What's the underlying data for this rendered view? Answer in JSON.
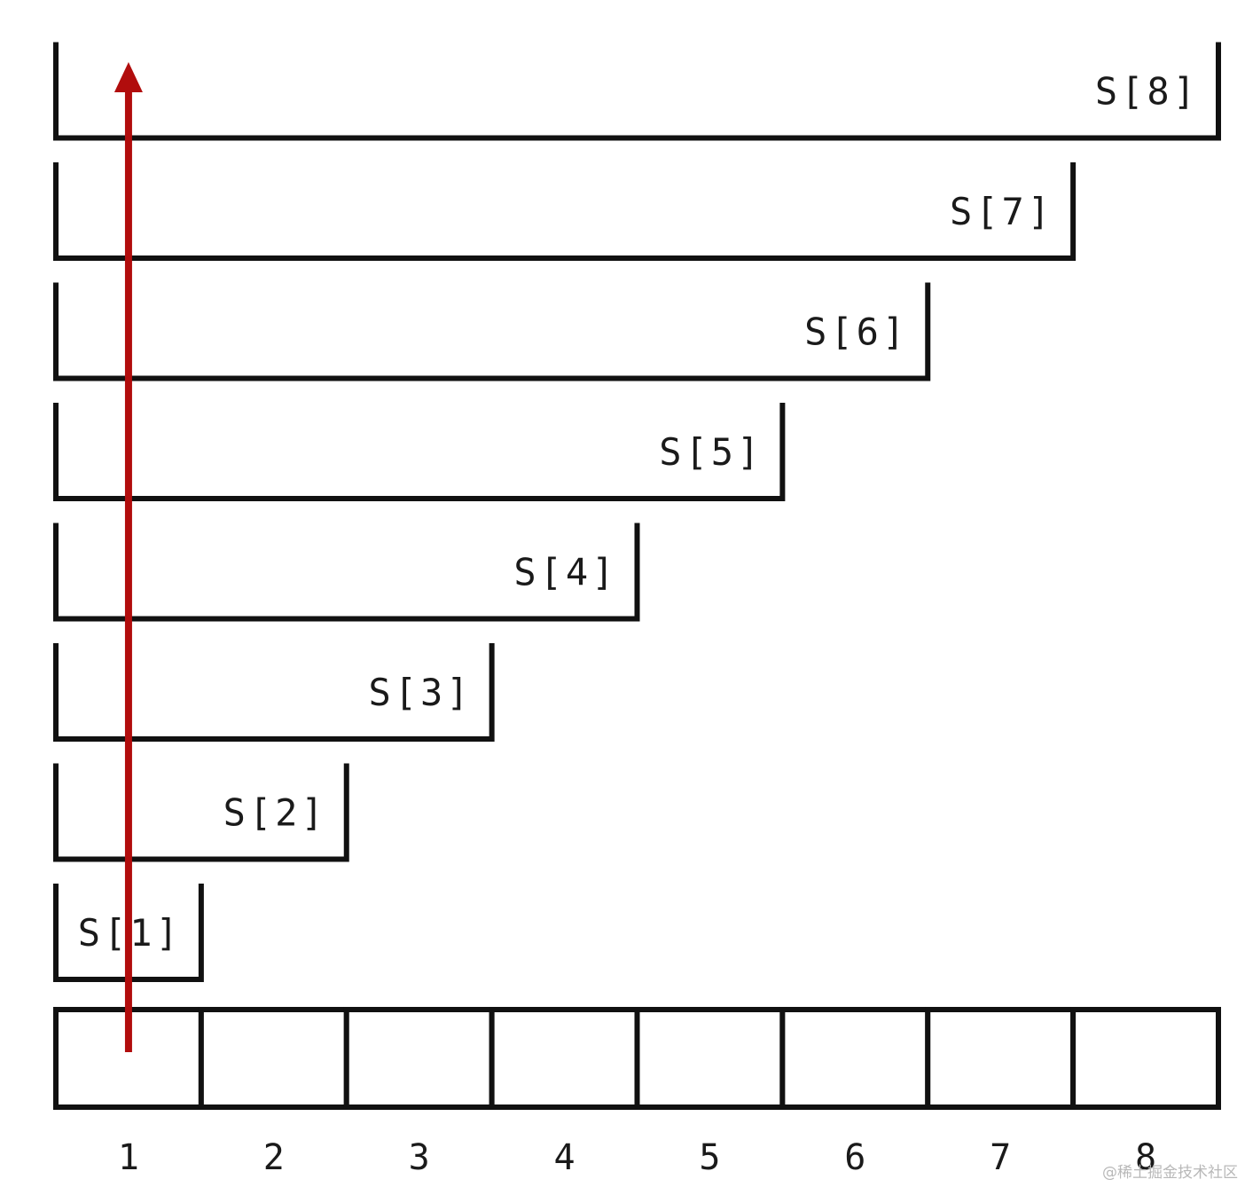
{
  "diagram": {
    "cell_count": 8,
    "s_labels": [
      "S[1]",
      "S[2]",
      "S[3]",
      "S[4]",
      "S[5]",
      "S[6]",
      "S[7]",
      "S[8]"
    ],
    "index_labels": [
      "1",
      "2",
      "3",
      "4",
      "5",
      "6",
      "7",
      "8"
    ],
    "arrow_color": "#b10d0d",
    "arrow_column": 1
  },
  "watermark": "@稀土掘金技术社区"
}
